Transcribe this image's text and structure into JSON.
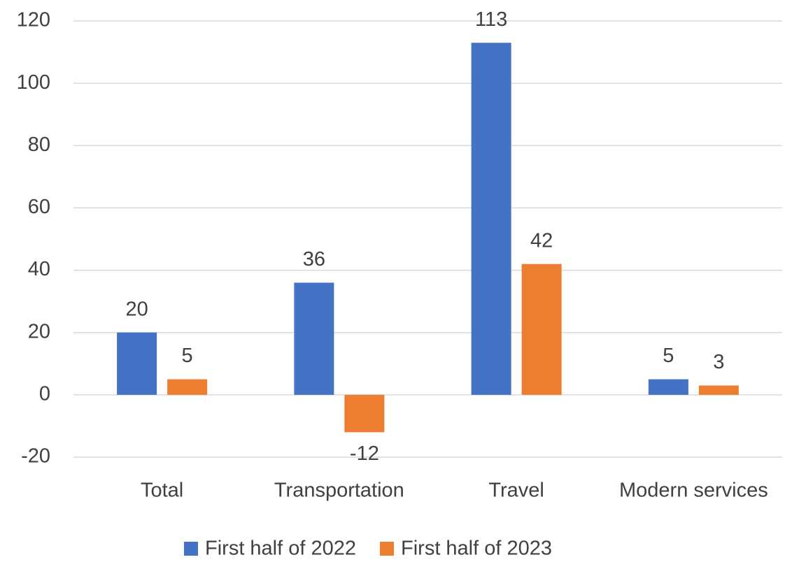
{
  "chart_data": {
    "type": "bar",
    "categories": [
      "Total",
      "Transportation",
      "Travel",
      "Modern services"
    ],
    "series": [
      {
        "name": "First half of 2022",
        "color": "#4472c4",
        "values": [
          20,
          36,
          113,
          5
        ]
      },
      {
        "name": "First half of 2023",
        "color": "#ed7d31",
        "values": [
          5,
          -12,
          42,
          3
        ]
      }
    ],
    "ylim": [
      -20,
      120
    ],
    "yticks": [
      -20,
      0,
      20,
      40,
      60,
      80,
      100,
      120
    ],
    "grid": true,
    "legend": "bottom"
  }
}
